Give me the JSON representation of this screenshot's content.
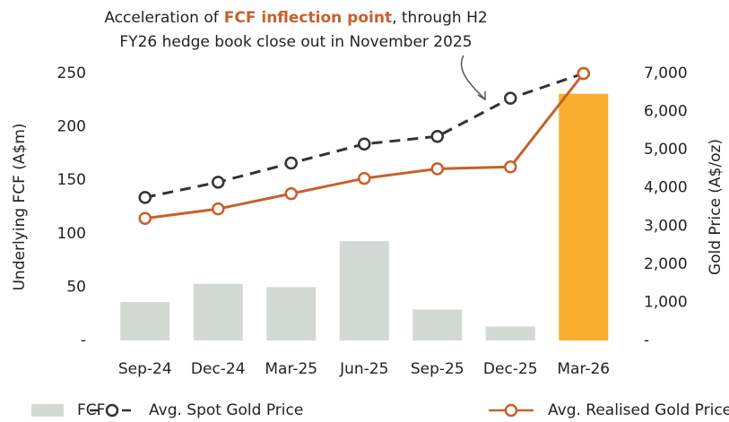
{
  "chart_data": {
    "type": "bar_line",
    "annotation": {
      "prefix": "Acceleration of",
      "highlight": "FCF inflection point",
      "suffix": ", through H2",
      "line2": "FY26 hedge book close out in November 2025"
    },
    "annotation_color": "#c8602a",
    "y_label": "Underlying FCF (A$m)",
    "y2_label": "Gold Price (A$/oz)",
    "categories": [
      "Sep-24",
      "Dec-24",
      "Mar-25",
      "Jun-25",
      "Sep-25",
      "Dec-25",
      "Mar-26"
    ],
    "series": [
      {
        "name": "FCF",
        "type": "bar",
        "color": "#d3d9d3",
        "colors": [
          "#d3d9d3",
          "#d3d9d3",
          "#d3d9d3",
          "#d3d9d3",
          "#d3d9d3",
          "#d3d9d3",
          "#f9ae2e"
        ],
        "values": [
          36,
          53,
          50,
          93,
          29,
          13,
          231
        ]
      },
      {
        "name": "Avg. Spot Gold Price",
        "type": "line",
        "axis": "y2",
        "color": "#333333",
        "dashed": true,
        "values": [
          3750,
          4150,
          4650,
          5150,
          5350,
          6350,
          7000
        ]
      },
      {
        "name": "Avg. Realised Gold Price",
        "type": "line",
        "axis": "y2",
        "color": "#c8602a",
        "dashed": false,
        "values": [
          3200,
          3450,
          3850,
          4250,
          4500,
          4550,
          7000
        ]
      }
    ],
    "ylim": [
      0,
      250
    ],
    "yticks": [
      {
        "value": 0,
        "label": "-"
      },
      50,
      100,
      150,
      200,
      250
    ],
    "y2lim": [
      0,
      7000
    ],
    "y2ticks": [
      {
        "value": 0,
        "label": "-"
      },
      {
        "value": 1000,
        "label": "1,000"
      },
      {
        "value": 2000,
        "label": "2,000"
      },
      {
        "value": 3000,
        "label": "3,000"
      },
      {
        "value": 4000,
        "label": "4,000"
      },
      {
        "value": 5000,
        "label": "5,000"
      },
      {
        "value": 6000,
        "label": "6,000"
      },
      {
        "value": 7000,
        "label": "7,000"
      }
    ]
  }
}
